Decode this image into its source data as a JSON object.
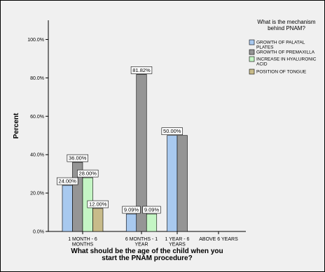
{
  "chart_data": {
    "type": "bar",
    "ylabel": "Percent",
    "xlabel": [
      "What should be the age of the child when you",
      "start the PNAM procedure?"
    ],
    "ylim": [
      0,
      110
    ],
    "yticks": [
      "0.0%",
      "20.0%",
      "40.0%",
      "60.0%",
      "80.0%",
      "100.0%"
    ],
    "ytick_values": [
      0,
      20,
      40,
      60,
      80,
      100
    ],
    "categories": [
      [
        "1 MONTH - 6",
        "MONTHS"
      ],
      [
        "6 MONTHS - 1",
        "YEAR"
      ],
      [
        "1 YEAR - 6",
        "YEARS"
      ],
      [
        "ABOVE 6 YEARS"
      ]
    ],
    "legend": {
      "title": [
        "What is the mechanism",
        "behind PNAM?"
      ],
      "placement": "right"
    },
    "series": [
      {
        "name": [
          "GROWTH OF PALATAL",
          "PLATES"
        ],
        "color": "#a8c9ef",
        "values": [
          24.0,
          9.09,
          50.0,
          null
        ],
        "labels": [
          "24.00%",
          "9.09%",
          "50.00%",
          null
        ]
      },
      {
        "name": [
          "GROWTH OF PREMAXILLA"
        ],
        "color": "#959595",
        "values": [
          36.0,
          81.82,
          50.0,
          null
        ],
        "labels": [
          "36.00%",
          "81.82%",
          null,
          null
        ]
      },
      {
        "name": [
          "INCREASE IN HYALURONIC",
          "ACID"
        ],
        "color": "#c4f5c4",
        "values": [
          28.0,
          9.09,
          null,
          null
        ],
        "labels": [
          "28.00%",
          "9.09%",
          null,
          null
        ]
      },
      {
        "name": [
          "POSITION OF TONGUE"
        ],
        "color": "#c8bb8a",
        "values": [
          12.0,
          null,
          null,
          null
        ],
        "labels": [
          "12.00%",
          null,
          null,
          null
        ]
      }
    ]
  }
}
